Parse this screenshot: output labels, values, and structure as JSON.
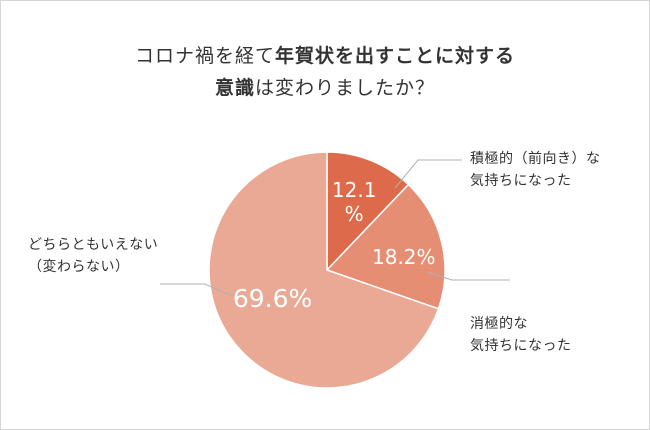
{
  "title": {
    "line1_plain": "コロナ禍を経て",
    "line1_bold": "年賀状を出すことに対する",
    "line2_bold": "意識",
    "line2_plain": "は変わりましたか？"
  },
  "chart_data": {
    "type": "pie",
    "start": "12 o'clock, clockwise",
    "slices": [
      {
        "label_lines": [
          "積極的（前向き）な",
          "気持ちになった"
        ],
        "value": 12.1,
        "value_lines": [
          "12.1",
          "%"
        ],
        "color": "#dd6a4a"
      },
      {
        "label_lines": [
          "消極的な",
          "気持ちになった"
        ],
        "value": 18.2,
        "value_lines": [
          "18.2%"
        ],
        "color": "#e58e74"
      },
      {
        "label_lines": [
          "どちらともいえない",
          "（変わらない）"
        ],
        "value": 69.6,
        "value_lines": [
          "69.6%"
        ],
        "color": "#eaa994"
      }
    ],
    "leader_line_color": "#b0b0b0"
  }
}
